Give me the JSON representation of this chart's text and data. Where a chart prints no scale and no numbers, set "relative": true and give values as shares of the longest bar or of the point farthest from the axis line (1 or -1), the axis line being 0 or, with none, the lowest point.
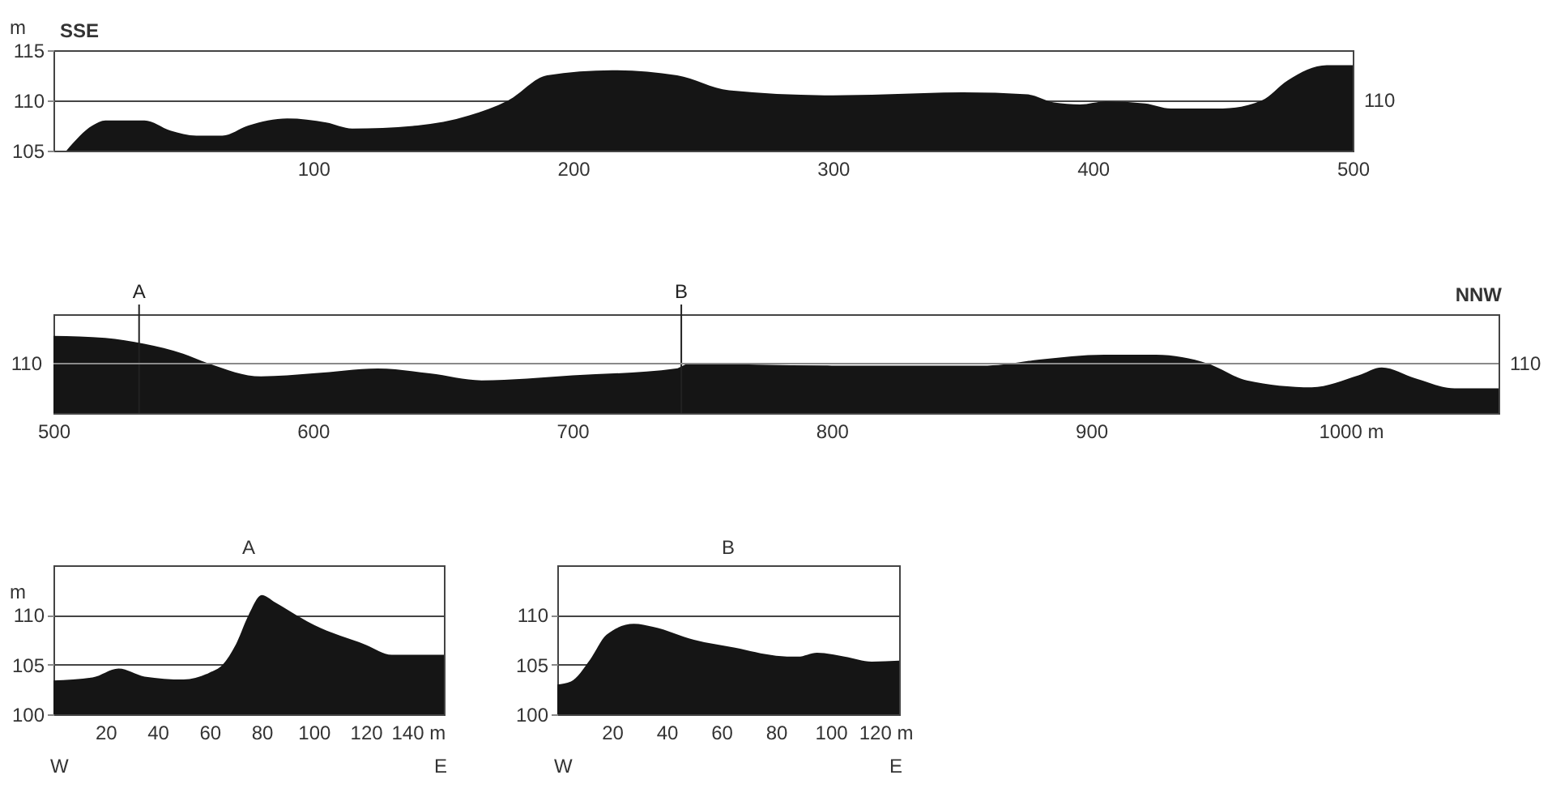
{
  "chart_data": [
    {
      "type": "area",
      "ylabel": "m",
      "annotations": [
        "SSE",
        "110"
      ],
      "color": "#151515",
      "x": [
        5,
        15,
        20,
        35,
        45,
        55,
        65,
        75,
        90,
        105,
        115,
        140,
        160,
        175,
        190,
        215,
        240,
        260,
        300,
        320,
        350,
        375,
        385,
        395,
        405,
        420,
        430,
        450,
        465,
        475,
        490,
        500
      ],
      "values": [
        105,
        107.5,
        108,
        108,
        107,
        106.5,
        106.5,
        107.5,
        108.2,
        107.8,
        107.2,
        107.5,
        108.5,
        110,
        112.5,
        113,
        112.5,
        111,
        110.5,
        110.6,
        110.8,
        110.6,
        109.8,
        109.6,
        109.9,
        109.7,
        109.2,
        109.2,
        110,
        112,
        113.5,
        113.5
      ],
      "xlim": [
        0,
        500
      ],
      "xticks": [
        100,
        200,
        300,
        400,
        500
      ],
      "ylim": [
        105,
        115
      ],
      "yticks": [
        105,
        110,
        115
      ],
      "grid": "y"
    },
    {
      "type": "area",
      "relative": true,
      "annotations": [
        "NNW",
        "110",
        "110"
      ],
      "color": "#151515",
      "x": [
        500,
        520,
        535,
        550,
        560,
        580,
        600,
        625,
        645,
        665,
        700,
        740,
        745,
        800,
        860,
        880,
        905,
        925,
        945,
        960,
        985,
        1003,
        1012,
        1025,
        1040,
        1057
      ],
      "values": [
        1,
        0.974,
        0.897,
        0.769,
        0.641,
        0.474,
        0.513,
        0.577,
        0.513,
        0.423,
        0.487,
        0.577,
        0.641,
        0.615,
        0.615,
        0.692,
        0.756,
        0.756,
        0.641,
        0.423,
        0.333,
        0.487,
        0.59,
        0.449,
        0.321,
        0.321
      ],
      "xlim": [
        500,
        1057
      ],
      "xticks": [
        500,
        600,
        700,
        800,
        900,
        {
          "value": 1000,
          "label": "1000 m"
        }
      ],
      "ref_lines": [
        {
          "axis": "x",
          "value": 533,
          "label": "A"
        },
        {
          "axis": "x",
          "value": 742,
          "label": "B"
        },
        {
          "axis": "y",
          "value": 0.641,
          "color": "#8a8a8a"
        }
      ]
    },
    {
      "type": "area",
      "title": "A",
      "ylabel": "m",
      "annotations": [
        "W",
        "E"
      ],
      "color": "#151515",
      "x": [
        0,
        15,
        25,
        35,
        50,
        60,
        65,
        70,
        75,
        80,
        85,
        100,
        120,
        130,
        150
      ],
      "values": [
        103.4,
        103.7,
        104.6,
        103.8,
        103.5,
        104.2,
        105,
        107,
        110,
        112,
        111.3,
        109,
        107,
        106,
        106
      ],
      "xlim": [
        0,
        150
      ],
      "xticks": [
        20,
        40,
        60,
        80,
        100,
        120,
        {
          "value": 140,
          "label": "140 m"
        }
      ],
      "ylim": [
        100,
        115
      ],
      "yticks": [
        100,
        105,
        110
      ],
      "grid": "y"
    },
    {
      "type": "area",
      "title": "B",
      "annotations": [
        "W",
        "E"
      ],
      "color": "#151515",
      "x": [
        0,
        5,
        12,
        18,
        28,
        35,
        50,
        65,
        80,
        88,
        95,
        105,
        115,
        125
      ],
      "values": [
        103,
        103.3,
        105.5,
        108,
        109.1,
        108.8,
        107.5,
        106.7,
        105.9,
        105.8,
        106.2,
        105.8,
        105.3,
        105.4
      ],
      "xlim": [
        0,
        125
      ],
      "xticks": [
        20,
        40,
        60,
        80,
        100,
        {
          "value": 120,
          "label": "120 m"
        }
      ],
      "ylim": [
        100,
        115
      ],
      "yticks": [
        100,
        105,
        110
      ],
      "grid": "y"
    }
  ]
}
